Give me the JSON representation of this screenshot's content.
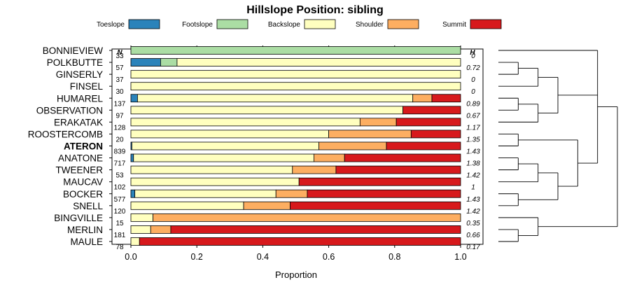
{
  "chart_data": {
    "type": "bar",
    "orientation": "horizontal-stacked",
    "title": "Hillslope Position: sibling",
    "xlabel": "Proportion",
    "ylabel": "",
    "xlim": [
      0,
      1
    ],
    "xticks": [
      "0.0",
      "0.2",
      "0.4",
      "0.6",
      "0.8",
      "1.0"
    ],
    "legend_placement": "top",
    "n_header": "N",
    "h_header": "H",
    "highlighted": "ATERON",
    "legend": [
      {
        "name": "Toeslope",
        "color": "#2b83ba"
      },
      {
        "name": "Footslope",
        "color": "#abdda4"
      },
      {
        "name": "Backslope",
        "color": "#ffffbf"
      },
      {
        "name": "Shoulder",
        "color": "#fdae61"
      },
      {
        "name": "Summit",
        "color": "#d7191c"
      }
    ],
    "categories": [
      "BONNIEVIEW",
      "POLKBUTTE",
      "GINSERLY",
      "FINSEL",
      "HUMAREL",
      "OBSERVATION",
      "ERAKATAK",
      "ROOSTERCOMB",
      "ATERON",
      "ANATONE",
      "TWEENER",
      "MAUCAV",
      "BOCKER",
      "SNELL",
      "BINGVILLE",
      "MERLIN",
      "MAULE"
    ],
    "n": [
      "33",
      "57",
      "37",
      "30",
      "137",
      "97",
      "128",
      "20",
      "839",
      "717",
      "53",
      "102",
      "577",
      "120",
      "15",
      "181",
      "78"
    ],
    "h": [
      "0",
      "0.72",
      "0",
      "0",
      "0.89",
      "0.67",
      "1.17",
      "1.35",
      "1.43",
      "1.38",
      "1.42",
      "1",
      "1.43",
      "1.42",
      "0.35",
      "0.66",
      "0.17"
    ],
    "series": [
      {
        "name": "Toeslope",
        "values": [
          0,
          0.09,
          0,
          0,
          0.02,
          0,
          0,
          0,
          0.003,
          0.008,
          0,
          0,
          0.012,
          0,
          0,
          0,
          0
        ]
      },
      {
        "name": "Footslope",
        "values": [
          1.0,
          0.05,
          0,
          0,
          0,
          0,
          0,
          0,
          0,
          0,
          0,
          0,
          0,
          0,
          0,
          0,
          0
        ]
      },
      {
        "name": "Backslope",
        "values": [
          0,
          0.86,
          1.0,
          1.0,
          0.835,
          0.825,
          0.695,
          0.6,
          0.567,
          0.547,
          0.49,
          0.51,
          0.428,
          0.342,
          0.067,
          0.06,
          0.026
        ]
      },
      {
        "name": "Shoulder",
        "values": [
          0,
          0,
          0,
          0,
          0.058,
          0,
          0.11,
          0.25,
          0.205,
          0.093,
          0.132,
          0,
          0.095,
          0.141,
          0.933,
          0.061,
          0
        ]
      },
      {
        "name": "Summit",
        "values": [
          0,
          0,
          0,
          0,
          0.087,
          0.175,
          0.195,
          0.15,
          0.225,
          0.352,
          0.378,
          0.49,
          0.465,
          0.517,
          0,
          0.879,
          0.974
        ]
      }
    ],
    "dendrogram": "((BONNIEVIEW,(((POLKBUTTE,GINSERLY),FINSEL),((HUMAREL,OBSERVATION),ERAKATAK)),((ROOSTERCOMB,ATERON),(((ANATONE,TWEENER),MAUCAV),(BOCKER,SNELL)))),(BINGVILLE,(MERLIN,MAULE)))"
  }
}
